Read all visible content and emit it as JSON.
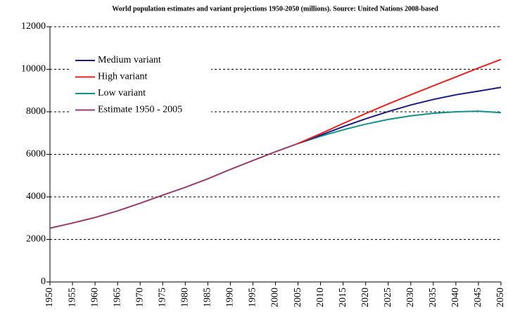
{
  "chart_data": {
    "type": "line",
    "title": "World population estimates and variant projections 1950-2050 (millions). Source: United Nations 2008-based",
    "x": [
      1950,
      1955,
      1960,
      1965,
      1970,
      1975,
      1980,
      1985,
      1990,
      1995,
      2000,
      2005,
      2010,
      2015,
      2020,
      2025,
      2030,
      2035,
      2040,
      2045,
      2050
    ],
    "series": [
      {
        "name": "Medium variant",
        "color": "#1c1a7e",
        "values": [
          null,
          null,
          null,
          null,
          null,
          null,
          null,
          null,
          null,
          null,
          null,
          6510,
          6900,
          7300,
          7670,
          8010,
          8320,
          8580,
          8800,
          8970,
          9150
        ]
      },
      {
        "name": "High variant",
        "color": "#e8231f",
        "values": [
          null,
          null,
          null,
          null,
          null,
          null,
          null,
          null,
          null,
          null,
          null,
          6510,
          6970,
          7450,
          7920,
          8370,
          8800,
          9220,
          9640,
          10060,
          10460
        ]
      },
      {
        "name": "Low variant",
        "color": "#13908a",
        "values": [
          null,
          null,
          null,
          null,
          null,
          null,
          null,
          null,
          null,
          null,
          null,
          6510,
          6850,
          7150,
          7420,
          7640,
          7810,
          7930,
          8000,
          8030,
          7960
        ]
      },
      {
        "name": "Estimate 1950 - 2005",
        "color": "#9b3a6e",
        "values": [
          2530,
          2770,
          3030,
          3340,
          3700,
          4080,
          4450,
          4850,
          5290,
          5710,
          6120,
          6510,
          null,
          null,
          null,
          null,
          null,
          null,
          null,
          null,
          null
        ]
      }
    ],
    "xlim": [
      1950,
      2050
    ],
    "xticks": [
      1950,
      1955,
      1960,
      1965,
      1970,
      1975,
      1980,
      1985,
      1990,
      1995,
      2000,
      2005,
      2010,
      2015,
      2020,
      2025,
      2030,
      2035,
      2040,
      2045,
      2050
    ],
    "ylim": [
      0,
      12000
    ],
    "yticks": [
      0,
      2000,
      4000,
      6000,
      8000,
      10000,
      12000
    ],
    "grid": true,
    "legend": "upper left"
  }
}
